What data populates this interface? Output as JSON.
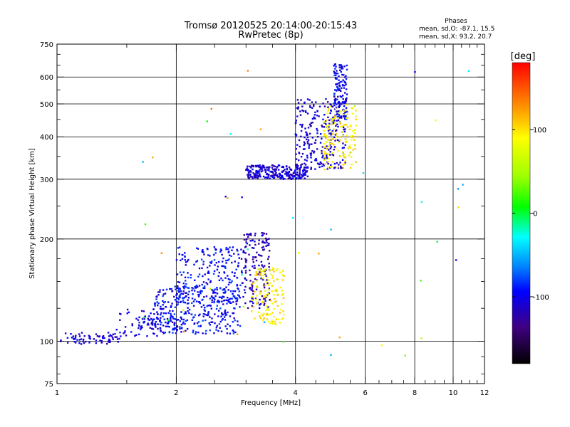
{
  "chart_data": {
    "type": "scatter",
    "title": "Tromsø 20120525 20:14:00-20:15:43",
    "subtitle": "RwPretec (8p)",
    "xlabel": "Frequency [MHz]",
    "ylabel": "Stationary phase Virtual Height [km]",
    "x_scale": "log",
    "y_scale": "log",
    "xlim": [
      1,
      12
    ],
    "ylim": [
      75,
      750
    ],
    "x_ticks": [
      1,
      2,
      4,
      6,
      8,
      10,
      12
    ],
    "y_ticks": [
      75,
      100,
      200,
      300,
      400,
      500,
      600,
      750
    ],
    "grid": true,
    "phase_stats": {
      "heading": "Phases",
      "line_o": "mean, sd,O: -87.1, 15.5",
      "line_x": "mean, sd,X:  93.2, 20.7"
    },
    "colorbar": {
      "label": "[deg]",
      "range": [
        -180,
        180
      ],
      "ticks": [
        100,
        0,
        -100
      ]
    },
    "clusters": [
      {
        "desc": "low E trace",
        "x": [
          1.02,
          1.45
        ],
        "y": [
          98,
          106
        ],
        "phase": -110,
        "n": 70
      },
      {
        "desc": "E rise",
        "x": [
          1.4,
          1.8
        ],
        "y": [
          103,
          125
        ],
        "phase": -105,
        "n": 45
      },
      {
        "desc": "Es plateau",
        "x": [
          1.6,
          2.1
        ],
        "y": [
          108,
          118
        ],
        "phase": -100,
        "n": 70
      },
      {
        "desc": "F1 low band",
        "x": [
          1.75,
          2.9
        ],
        "y": [
          105,
          145
        ],
        "phase": -95,
        "n": 300
      },
      {
        "desc": "F1 upper band",
        "x": [
          2.0,
          3.0
        ],
        "y": [
          130,
          190
        ],
        "phase": -95,
        "n": 230
      },
      {
        "desc": "F1 cusp",
        "x": [
          2.95,
          3.45
        ],
        "y": [
          125,
          210
        ],
        "phase": -120,
        "n": 160
      },
      {
        "desc": "X F1 cusp",
        "x": [
          3.1,
          3.75
        ],
        "y": [
          112,
          165
        ],
        "phase": 95,
        "n": 130
      },
      {
        "desc": "F2 base",
        "x": [
          3.0,
          4.3
        ],
        "y": [
          300,
          330
        ],
        "phase": -110,
        "n": 250
      },
      {
        "desc": "F2 rise",
        "x": [
          4.0,
          5.35
        ],
        "y": [
          320,
          520
        ],
        "phase": -108,
        "n": 260
      },
      {
        "desc": "F2 cusp",
        "x": [
          5.0,
          5.4
        ],
        "y": [
          450,
          660
        ],
        "phase": -100,
        "n": 130
      },
      {
        "desc": "X F2 trace",
        "x": [
          4.7,
          5.7
        ],
        "y": [
          320,
          500
        ],
        "phase": 95,
        "n": 140
      },
      {
        "desc": "scattered echoes",
        "x": [
          1.5,
          11.0
        ],
        "y": [
          90,
          650
        ],
        "phase": 0,
        "n": 45
      }
    ]
  }
}
